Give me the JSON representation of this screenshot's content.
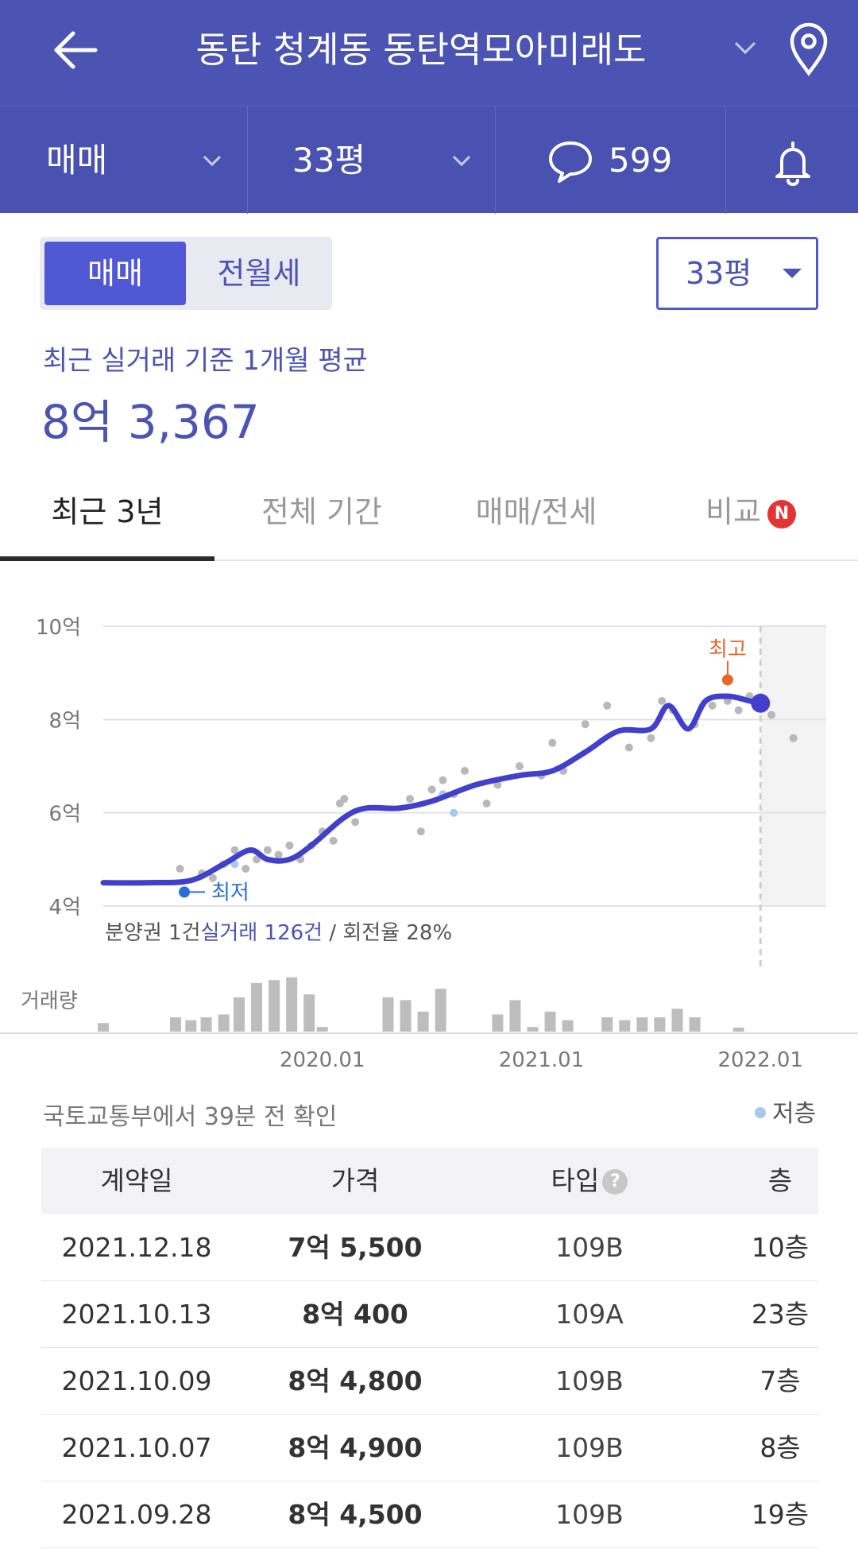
{
  "header": {
    "title": "동탄 청계동 동탄역모아미래도",
    "back_icon": "arrow-left-icon",
    "pin_icon": "location-pin-icon"
  },
  "filters": {
    "deal_type": "매매",
    "size": "33평",
    "comment_count": "599"
  },
  "segmented": {
    "options": [
      "매매",
      "전월세"
    ],
    "selected": "매매"
  },
  "size_select": {
    "value": "33평"
  },
  "average": {
    "label": "최근 실거래 기준 1개월 평균",
    "value": "8억 3,367"
  },
  "tabs": [
    {
      "label": "최근 3년",
      "active": true
    },
    {
      "label": "전체 기간"
    },
    {
      "label": "매매/전세"
    },
    {
      "label": "비교",
      "badge": "N"
    }
  ],
  "chart_data": {
    "type": "line",
    "y_unit": "억",
    "yticks": [
      "10억",
      "8억",
      "6억",
      "4억"
    ],
    "ylim": [
      4,
      10
    ],
    "xticks": [
      "2020.01",
      "2021.01",
      "2022.01"
    ],
    "x_range": [
      2019.0,
      2022.3
    ],
    "series": [
      {
        "points": [
          [
            2019.0,
            4.5
          ],
          [
            2019.2,
            4.5
          ],
          [
            2019.4,
            4.55
          ],
          [
            2019.55,
            4.9
          ],
          [
            2019.67,
            5.2
          ],
          [
            2019.75,
            5.0
          ],
          [
            2019.85,
            5.0
          ],
          [
            2019.95,
            5.3
          ],
          [
            2020.1,
            5.9
          ],
          [
            2020.2,
            6.1
          ],
          [
            2020.35,
            6.1
          ],
          [
            2020.5,
            6.25
          ],
          [
            2020.7,
            6.6
          ],
          [
            2020.9,
            6.8
          ],
          [
            2021.05,
            6.9
          ],
          [
            2021.2,
            7.3
          ],
          [
            2021.35,
            7.75
          ],
          [
            2021.5,
            7.8
          ],
          [
            2021.58,
            8.3
          ],
          [
            2021.67,
            7.8
          ],
          [
            2021.75,
            8.4
          ],
          [
            2021.85,
            8.5
          ],
          [
            2021.95,
            8.4
          ],
          [
            2022.0,
            8.35
          ]
        ]
      }
    ],
    "last_value": 8.35,
    "highest": {
      "label": "최고",
      "x": 2021.85,
      "y": 8.85
    },
    "lowest": {
      "label": "최저",
      "x": 2019.37,
      "y": 4.3
    },
    "scatter": [
      [
        2019.35,
        4.8
      ],
      [
        2019.45,
        4.7
      ],
      [
        2019.5,
        4.6
      ],
      [
        2019.55,
        4.9
      ],
      [
        2019.6,
        5.2
      ],
      [
        2019.65,
        4.8
      ],
      [
        2019.7,
        5.0
      ],
      [
        2019.75,
        5.2
      ],
      [
        2019.8,
        5.1
      ],
      [
        2019.85,
        5.3
      ],
      [
        2019.9,
        5.0
      ],
      [
        2019.95,
        5.3
      ],
      [
        2020.0,
        5.6
      ],
      [
        2020.05,
        5.4
      ],
      [
        2020.08,
        6.2
      ],
      [
        2020.1,
        6.3
      ],
      [
        2020.15,
        5.8
      ],
      [
        2020.4,
        6.3
      ],
      [
        2020.45,
        5.6
      ],
      [
        2020.5,
        6.5
      ],
      [
        2020.55,
        6.7
      ],
      [
        2020.6,
        6.4
      ],
      [
        2020.65,
        6.9
      ],
      [
        2020.75,
        6.2
      ],
      [
        2020.8,
        6.6
      ],
      [
        2020.9,
        7.0
      ],
      [
        2021.0,
        6.8
      ],
      [
        2021.05,
        7.5
      ],
      [
        2021.1,
        6.9
      ],
      [
        2021.2,
        7.9
      ],
      [
        2021.3,
        8.3
      ],
      [
        2021.4,
        7.4
      ],
      [
        2021.5,
        7.6
      ],
      [
        2021.55,
        8.4
      ],
      [
        2021.6,
        8.2
      ],
      [
        2021.7,
        7.9
      ],
      [
        2021.78,
        8.3
      ],
      [
        2021.85,
        8.4
      ],
      [
        2021.9,
        8.2
      ],
      [
        2021.95,
        8.5
      ],
      [
        2022.05,
        8.1
      ],
      [
        2022.15,
        7.6
      ]
    ],
    "low_floor_points": [
      [
        2019.6,
        4.9
      ],
      [
        2020.6,
        6.0
      ],
      [
        2020.55,
        6.4
      ]
    ],
    "volume_label": "거래량",
    "volume": [
      [
        2019.0,
        0.15
      ],
      [
        2019.33,
        0.25
      ],
      [
        2019.4,
        0.2
      ],
      [
        2019.47,
        0.25
      ],
      [
        2019.55,
        0.3
      ],
      [
        2019.62,
        0.6
      ],
      [
        2019.7,
        0.85
      ],
      [
        2019.78,
        0.9
      ],
      [
        2019.86,
        0.95
      ],
      [
        2019.94,
        0.65
      ],
      [
        2020.0,
        0.08
      ],
      [
        2020.3,
        0.6
      ],
      [
        2020.38,
        0.55
      ],
      [
        2020.46,
        0.35
      ],
      [
        2020.54,
        0.75
      ],
      [
        2020.8,
        0.3
      ],
      [
        2020.88,
        0.55
      ],
      [
        2020.96,
        0.08
      ],
      [
        2021.04,
        0.35
      ],
      [
        2021.12,
        0.2
      ],
      [
        2021.3,
        0.25
      ],
      [
        2021.38,
        0.2
      ],
      [
        2021.46,
        0.25
      ],
      [
        2021.54,
        0.25
      ],
      [
        2021.62,
        0.4
      ],
      [
        2021.7,
        0.25
      ],
      [
        2021.9,
        0.07
      ]
    ],
    "caption": "분양권 1건",
    "caption_highlight": "실거래 126건",
    "caption_rest": "/ 회전율 28%"
  },
  "updated_text": "국토교통부에서 39분 전 확인",
  "legend": {
    "label": "저층",
    "color": "#a8c8ec"
  },
  "table": {
    "headers": [
      "계약일",
      "가격",
      "타입",
      "층"
    ],
    "rows": [
      [
        "2021.12.18",
        "7억 5,500",
        "109B",
        "10층"
      ],
      [
        "2021.10.13",
        "8억 400",
        "109A",
        "23층"
      ],
      [
        "2021.10.09",
        "8억 4,800",
        "109B",
        "7층"
      ],
      [
        "2021.10.07",
        "8억 4,900",
        "109B",
        "8층"
      ],
      [
        "2021.09.28",
        "8억 4,500",
        "109B",
        "19층"
      ]
    ]
  },
  "colors": {
    "brand": "#4c54b3",
    "line": "#4040cc",
    "highest": "#e8662a",
    "lowest": "#2a6fd8"
  }
}
